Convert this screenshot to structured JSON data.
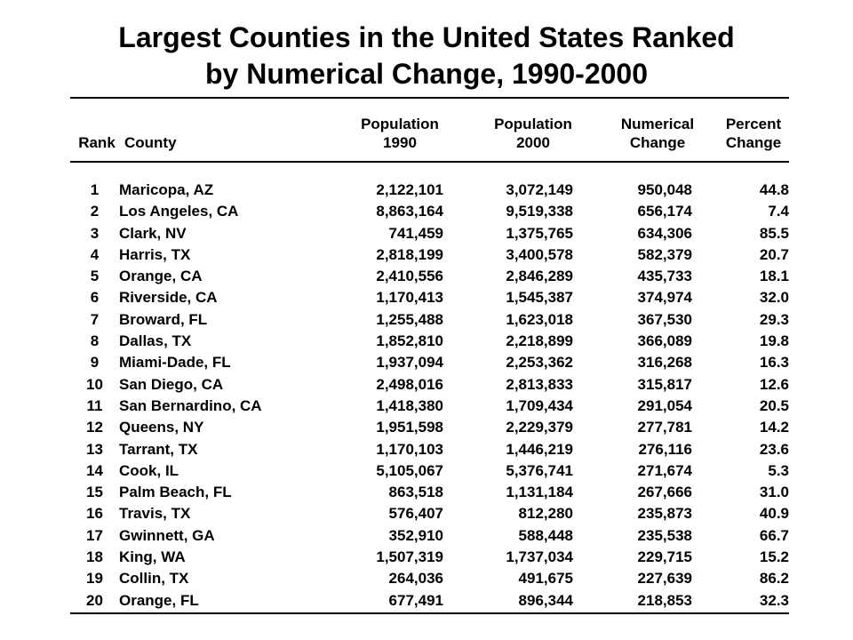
{
  "title": {
    "line1": "Largest Counties in the United States Ranked",
    "line2": "by Numerical Change, 1990-2000"
  },
  "headers": {
    "rank": "Rank",
    "county": "County",
    "pop1990": [
      "Population",
      "1990"
    ],
    "pop2000": [
      "Population",
      "2000"
    ],
    "numerical_change": [
      "Numerical",
      "Change"
    ],
    "percent_change": [
      "Percent",
      "Change"
    ]
  },
  "rows": [
    {
      "rank": "1",
      "county": "Maricopa, AZ",
      "pop1990": "2,122,101",
      "pop2000": "3,072,149",
      "num_change": "950,048",
      "pct_change": "44.8"
    },
    {
      "rank": "2",
      "county": "Los Angeles, CA",
      "pop1990": "8,863,164",
      "pop2000": "9,519,338",
      "num_change": "656,174",
      "pct_change": "7.4"
    },
    {
      "rank": "3",
      "county": "Clark, NV",
      "pop1990": "741,459",
      "pop2000": "1,375,765",
      "num_change": "634,306",
      "pct_change": "85.5"
    },
    {
      "rank": "4",
      "county": "Harris, TX",
      "pop1990": "2,818,199",
      "pop2000": "3,400,578",
      "num_change": "582,379",
      "pct_change": "20.7"
    },
    {
      "rank": "5",
      "county": "Orange, CA",
      "pop1990": "2,410,556",
      "pop2000": "2,846,289",
      "num_change": "435,733",
      "pct_change": "18.1"
    },
    {
      "rank": "6",
      "county": "Riverside, CA",
      "pop1990": "1,170,413",
      "pop2000": "1,545,387",
      "num_change": "374,974",
      "pct_change": "32.0"
    },
    {
      "rank": "7",
      "county": "Broward, FL",
      "pop1990": "1,255,488",
      "pop2000": "1,623,018",
      "num_change": "367,530",
      "pct_change": "29.3"
    },
    {
      "rank": "8",
      "county": "Dallas, TX",
      "pop1990": "1,852,810",
      "pop2000": "2,218,899",
      "num_change": "366,089",
      "pct_change": "19.8"
    },
    {
      "rank": "9",
      "county": "Miami-Dade, FL",
      "pop1990": "1,937,094",
      "pop2000": "2,253,362",
      "num_change": "316,268",
      "pct_change": "16.3"
    },
    {
      "rank": "10",
      "county": "San Diego, CA",
      "pop1990": "2,498,016",
      "pop2000": "2,813,833",
      "num_change": "315,817",
      "pct_change": "12.6"
    },
    {
      "rank": "11",
      "county": "San Bernardino, CA",
      "pop1990": "1,418,380",
      "pop2000": "1,709,434",
      "num_change": "291,054",
      "pct_change": "20.5"
    },
    {
      "rank": "12",
      "county": "Queens, NY",
      "pop1990": "1,951,598",
      "pop2000": "2,229,379",
      "num_change": "277,781",
      "pct_change": "14.2"
    },
    {
      "rank": "13",
      "county": "Tarrant, TX",
      "pop1990": "1,170,103",
      "pop2000": "1,446,219",
      "num_change": "276,116",
      "pct_change": "23.6"
    },
    {
      "rank": "14",
      "county": "Cook, IL",
      "pop1990": "5,105,067",
      "pop2000": "5,376,741",
      "num_change": "271,674",
      "pct_change": "5.3"
    },
    {
      "rank": "15",
      "county": "Palm Beach, FL",
      "pop1990": "863,518",
      "pop2000": "1,131,184",
      "num_change": "267,666",
      "pct_change": "31.0"
    },
    {
      "rank": "16",
      "county": "Travis, TX",
      "pop1990": "576,407",
      "pop2000": "812,280",
      "num_change": "235,873",
      "pct_change": "40.9"
    },
    {
      "rank": "17",
      "county": "Gwinnett, GA",
      "pop1990": "352,910",
      "pop2000": "588,448",
      "num_change": "235,538",
      "pct_change": "66.7"
    },
    {
      "rank": "18",
      "county": "King, WA",
      "pop1990": "1,507,319",
      "pop2000": "1,737,034",
      "num_change": "229,715",
      "pct_change": "15.2"
    },
    {
      "rank": "19",
      "county": "Collin, TX",
      "pop1990": "264,036",
      "pop2000": "491,675",
      "num_change": "227,639",
      "pct_change": "86.2"
    },
    {
      "rank": "20",
      "county": "Orange, FL",
      "pop1990": "677,491",
      "pop2000": "896,344",
      "num_change": "218,853",
      "pct_change": "32.3"
    }
  ]
}
